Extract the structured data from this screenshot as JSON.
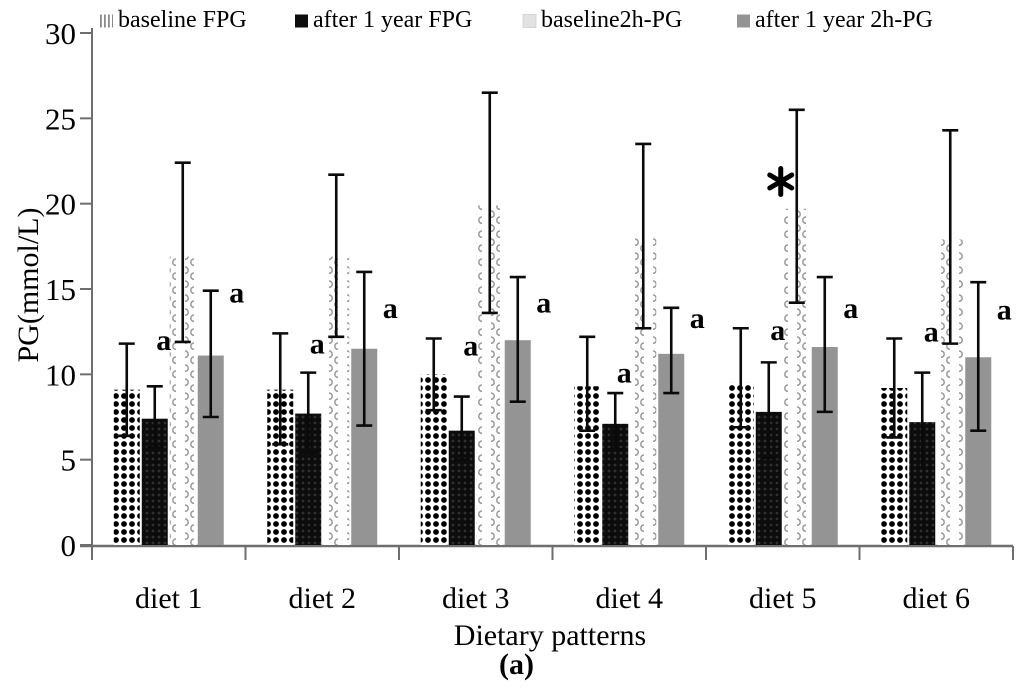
{
  "figure": {
    "caption": "(a)"
  },
  "chart_data": {
    "type": "bar",
    "title": "",
    "xlabel": "Dietary patterns",
    "ylabel": "PG(mmol/L)",
    "ylim": [
      0,
      30
    ],
    "yticks": [
      0,
      5,
      10,
      15,
      20,
      25,
      30
    ],
    "grid": false,
    "legend_position": "top",
    "categories": [
      "diet 1",
      "diet 2",
      "diet 3",
      "diet 4",
      "diet 5",
      "diet 6"
    ],
    "series": [
      {
        "name": "baseline FPG",
        "style": "dots",
        "values": [
          9.1,
          9.1,
          10.0,
          9.3,
          9.5,
          9.2
        ],
        "err_top": [
          11.8,
          12.4,
          12.1,
          12.2,
          12.7,
          12.1
        ],
        "err_bottom": [
          6.4,
          5.9,
          7.9,
          6.7,
          6.9,
          6.3
        ]
      },
      {
        "name": "after 1 year FPG",
        "style": "black",
        "values": [
          7.4,
          7.7,
          6.7,
          7.1,
          7.8,
          7.2
        ],
        "err_top": [
          9.3,
          10.1,
          8.7,
          8.9,
          10.7,
          10.1
        ],
        "err_bottom": [
          5.7,
          5.4,
          5.0,
          5.6,
          5.1,
          4.5
        ]
      },
      {
        "name": "baseline2h-PG",
        "style": "waves",
        "values": [
          16.9,
          16.9,
          19.9,
          18.0,
          19.7,
          17.9
        ],
        "err_top": [
          22.4,
          21.7,
          26.5,
          23.5,
          25.5,
          24.3
        ],
        "err_bottom": [
          11.9,
          12.2,
          13.6,
          12.7,
          14.2,
          11.8
        ]
      },
      {
        "name": "after 1 year 2h-PG",
        "style": "gray",
        "values": [
          11.1,
          11.5,
          12.0,
          11.2,
          11.6,
          11.0
        ],
        "err_top": [
          14.9,
          16.0,
          15.7,
          13.9,
          15.7,
          15.4
        ],
        "err_bottom": [
          7.5,
          7.0,
          8.4,
          8.9,
          7.8,
          6.7
        ]
      }
    ],
    "annotations": [
      {
        "text": "a",
        "category": "diet 1",
        "series": "after 1 year FPG",
        "level": 12.0
      },
      {
        "text": "a",
        "category": "diet 1",
        "series": "after 1 year 2h-PG",
        "level": 14.8
      },
      {
        "text": "a",
        "category": "diet 2",
        "series": "after 1 year FPG",
        "level": 11.8
      },
      {
        "text": "a",
        "category": "diet 2",
        "series": "after 1 year 2h-PG",
        "level": 13.9
      },
      {
        "text": "a",
        "category": "diet 3",
        "series": "after 1 year FPG",
        "level": 11.7
      },
      {
        "text": "a",
        "category": "diet 3",
        "series": "after 1 year 2h-PG",
        "level": 14.2
      },
      {
        "text": "a",
        "category": "diet 4",
        "series": "after 1 year FPG",
        "level": 10.1
      },
      {
        "text": "a",
        "category": "diet 4",
        "series": "after 1 year 2h-PG",
        "level": 13.3
      },
      {
        "text": "a",
        "category": "diet 5",
        "series": "after 1 year FPG",
        "level": 12.6
      },
      {
        "text": "*",
        "category": "diet 5",
        "series": "baseline2h-PG",
        "level": 21.3
      },
      {
        "text": "a",
        "category": "diet 5",
        "series": "after 1 year 2h-PG",
        "level": 13.9
      },
      {
        "text": "a",
        "category": "diet 6",
        "series": "after 1 year FPG",
        "level": 12.5
      },
      {
        "text": "a",
        "category": "diet 6",
        "series": "after 1 year 2h-PG",
        "level": 13.8
      }
    ],
    "colors": {
      "black_bar": "#0d0d0d",
      "gray_bar": "#949494",
      "light_swatch": "#e2e2e2",
      "wave_ink": "#9a9a9a",
      "axis": "#6e6e6e",
      "error_bar": "#0a0a0a",
      "text": "#000000"
    }
  }
}
